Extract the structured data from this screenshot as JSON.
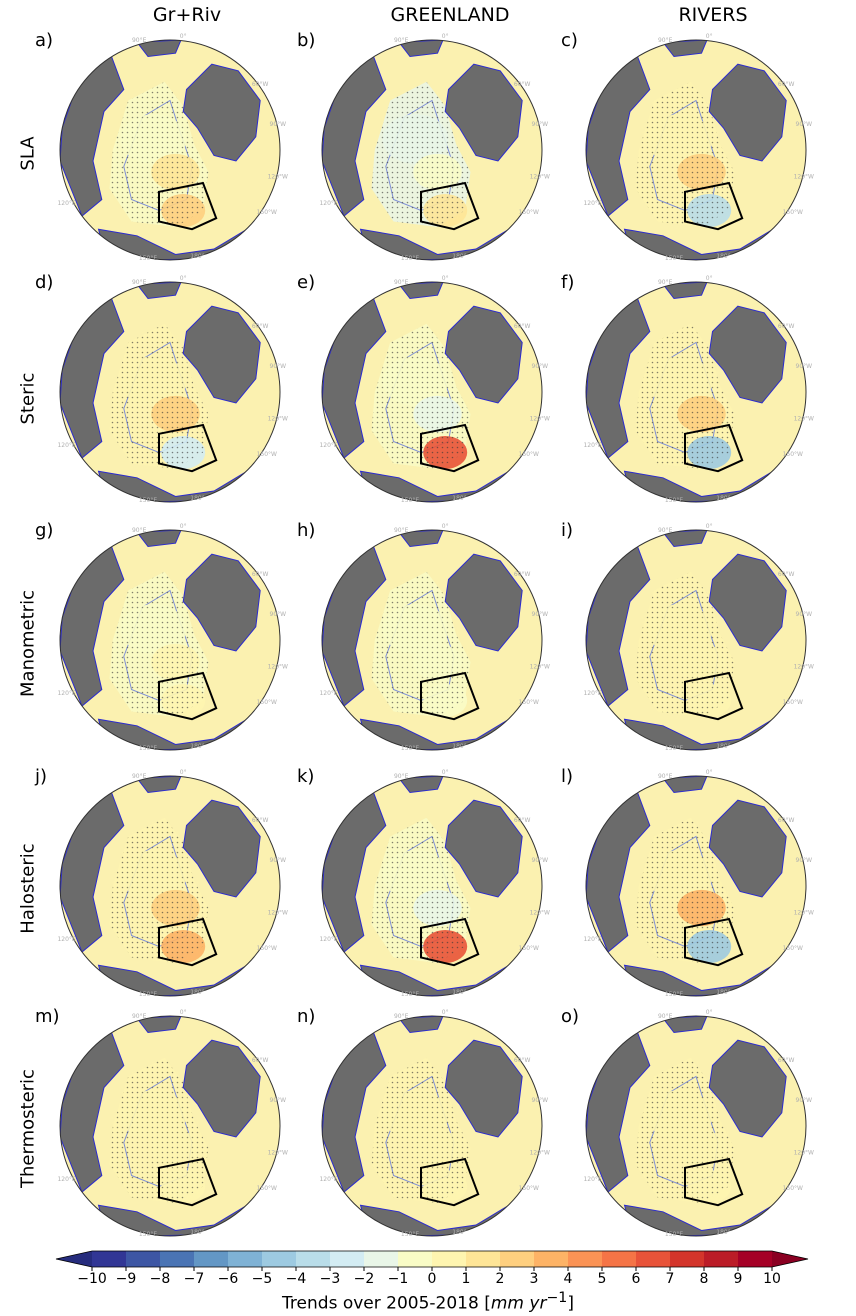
{
  "columns": [
    "Gr+Riv",
    "GREENLAND",
    "RIVERS"
  ],
  "rows": [
    "SLA",
    "Steric",
    "Manometric",
    "Halosteric",
    "Thermosteric"
  ],
  "panels": [
    {
      "label": "a)",
      "row": 0,
      "col": 0,
      "anomaly": [
        -0.5,
        1.5,
        2.0
      ]
    },
    {
      "label": "b)",
      "row": 0,
      "col": 1,
      "anomaly": [
        -1.5,
        -1.0,
        1.5
      ]
    },
    {
      "label": "c)",
      "row": 0,
      "col": 2,
      "anomaly": [
        0.5,
        2.5,
        -4.0
      ]
    },
    {
      "label": "d)",
      "row": 1,
      "col": 0,
      "anomaly": [
        0.5,
        2.0,
        -2.5
      ]
    },
    {
      "label": "e)",
      "row": 1,
      "col": 1,
      "anomaly": [
        -0.5,
        -1.5,
        6.5
      ]
    },
    {
      "label": "f)",
      "row": 1,
      "col": 2,
      "anomaly": [
        0.5,
        2.5,
        -5.0
      ]
    },
    {
      "label": "g)",
      "row": 2,
      "col": 0,
      "anomaly": [
        -1.0,
        0.5,
        0.5
      ]
    },
    {
      "label": "h)",
      "row": 2,
      "col": 1,
      "anomaly": [
        -1.0,
        -1.0,
        -0.5
      ]
    },
    {
      "label": "i)",
      "row": 2,
      "col": 2,
      "anomaly": [
        0.5,
        0.5,
        0.5
      ]
    },
    {
      "label": "j)",
      "row": 3,
      "col": 0,
      "anomaly": [
        0.5,
        2.5,
        3.0
      ]
    },
    {
      "label": "k)",
      "row": 3,
      "col": 1,
      "anomaly": [
        -0.5,
        -1.5,
        6.5
      ]
    },
    {
      "label": "l)",
      "row": 3,
      "col": 2,
      "anomaly": [
        0.5,
        3.0,
        -5.0
      ]
    },
    {
      "label": "m)",
      "row": 4,
      "col": 0,
      "anomaly": [
        0.0,
        0.5,
        0.5
      ]
    },
    {
      "label": "n)",
      "row": 4,
      "col": 1,
      "anomaly": [
        0.5,
        0.5,
        0.5
      ]
    },
    {
      "label": "o)",
      "row": 4,
      "col": 2,
      "anomaly": [
        0.5,
        0.5,
        0.5
      ]
    }
  ],
  "graticule_labels": [
    "90°E",
    "0°",
    "60°W",
    "90°W",
    "120°W",
    "150°W",
    "180°",
    "150°E",
    "120°E"
  ],
  "colorbar": {
    "ticks": [
      "−10",
      "−9",
      "−8",
      "−7",
      "−6",
      "−5",
      "−4",
      "−3",
      "−2",
      "−1",
      "0",
      "1",
      "2",
      "3",
      "4",
      "5",
      "6",
      "7",
      "8",
      "9",
      "10"
    ],
    "colors": [
      "#313695",
      "#3d56a4",
      "#4a74b4",
      "#6397c5",
      "#7fb2d5",
      "#9dcae1",
      "#b9dde9",
      "#d3ecf3",
      "#e9f6e8",
      "#f9fcc6",
      "#fef5b0",
      "#fee597",
      "#fecf7f",
      "#fdb366",
      "#fb9355",
      "#f57446",
      "#e85339",
      "#d3352b",
      "#bb1c27",
      "#a50026"
    ],
    "title_prefix": "Trends over 2005-2018 [",
    "title_unit": "mm yr",
    "title_exp": "−1",
    "title_suffix": "]"
  },
  "colors": {
    "land": "#6b6b6b",
    "ocean_base": "#fbf1b0",
    "coast": "#2b2bd0",
    "stipple": "#333333",
    "box": "#000000"
  }
}
